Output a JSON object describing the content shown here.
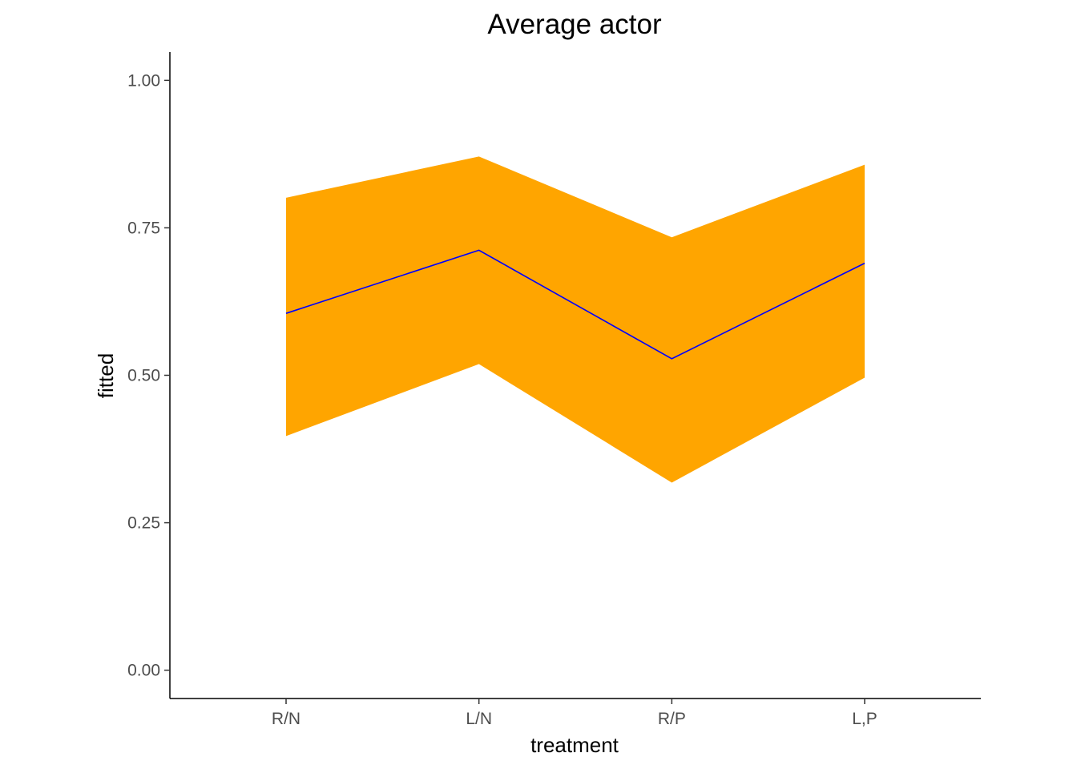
{
  "chart_data": {
    "type": "area",
    "title": "Average actor",
    "xlabel": "treatment",
    "ylabel": "fitted",
    "categories": [
      "R/N",
      "L/N",
      "R/P",
      "L,P"
    ],
    "series": [
      {
        "type": "line",
        "values": [
          0.605,
          0.712,
          0.528,
          0.69
        ],
        "color": "#0000ff"
      },
      {
        "type": "ribbon",
        "lower": [
          0.397,
          0.519,
          0.318,
          0.496
        ],
        "upper": [
          0.801,
          0.871,
          0.734,
          0.857
        ],
        "color": "#ffa500"
      }
    ],
    "ylim": [
      -0.048,
      1.048
    ],
    "yticks": [
      0.0,
      0.25,
      0.5,
      0.75,
      1.0
    ],
    "ytick_labels": [
      "0.00",
      "0.25",
      "0.50",
      "0.75",
      "1.00"
    ],
    "grid": false,
    "legend": "none"
  }
}
